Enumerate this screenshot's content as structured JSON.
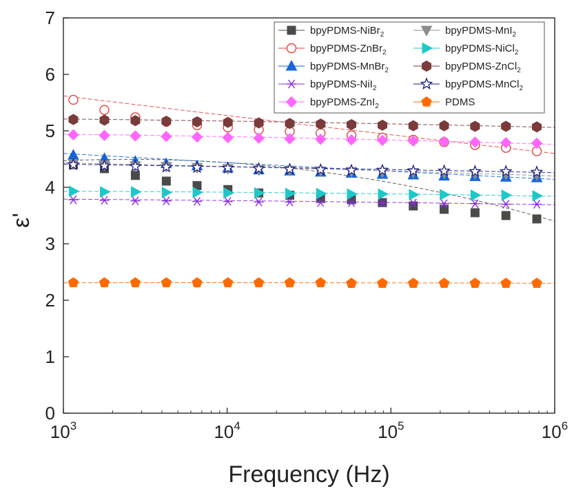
{
  "chart_data": {
    "type": "scatter",
    "title": "",
    "xlabel": "Frequency  (Hz)",
    "ylabel": "ε'",
    "xscale": "log",
    "xlim": [
      1000,
      1000000
    ],
    "ylim": [
      0,
      7
    ],
    "grid": false,
    "legend_position": "top-right",
    "x_ticks": [
      {
        "value": 1000,
        "base": "10",
        "exp": "3"
      },
      {
        "value": 10000,
        "base": "10",
        "exp": "4"
      },
      {
        "value": 100000,
        "base": "10",
        "exp": "5"
      },
      {
        "value": 1000000,
        "base": "10",
        "exp": "6"
      }
    ],
    "y_ticks": [
      0,
      1,
      2,
      3,
      4,
      5,
      6,
      7
    ],
    "x": [
      1150,
      1780,
      2750,
      4250,
      6550,
      10100,
      15600,
      24100,
      37200,
      57400,
      88700,
      136900,
      211300,
      326200,
      503700,
      777600
    ],
    "series": [
      {
        "name": "bpyPDMS-NiBr",
        "sub": "2",
        "marker": "square",
        "color": "#4a4a4a",
        "fill": "#4a4a4a",
        "values": [
          4.4,
          4.33,
          4.21,
          4.11,
          4.03,
          3.96,
          3.9,
          3.86,
          3.82,
          3.78,
          3.73,
          3.67,
          3.61,
          3.55,
          3.5,
          3.44
        ],
        "fit": [
          4.47,
          4.3,
          3.4
        ]
      },
      {
        "name": "bpyPDMS-ZnBr",
        "sub": "2",
        "marker": "circle-open",
        "color": "#e8403a",
        "fill": "none",
        "values": [
          5.55,
          5.37,
          5.24,
          5.16,
          5.1,
          5.06,
          5.02,
          4.99,
          4.96,
          4.92,
          4.88,
          4.84,
          4.8,
          4.75,
          4.7,
          4.64
        ],
        "fit": [
          5.62,
          5.1,
          4.6
        ]
      },
      {
        "name": "bpyPDMS-MnBr",
        "sub": "2",
        "marker": "triangle-up",
        "color": "#1565d8",
        "fill": "#1565d8",
        "values": [
          4.57,
          4.51,
          4.46,
          4.42,
          4.38,
          4.34,
          4.31,
          4.29,
          4.27,
          4.25,
          4.23,
          4.22,
          4.2,
          4.19,
          4.18,
          4.17
        ],
        "fit": [
          4.6,
          4.36,
          4.14
        ]
      },
      {
        "name": "bpyPDMS-NiI",
        "sub": "2",
        "marker": "asterisk",
        "color": "#8a2be2",
        "fill": "#8a2be2",
        "values": [
          3.78,
          3.77,
          3.76,
          3.76,
          3.75,
          3.75,
          3.74,
          3.74,
          3.73,
          3.73,
          3.72,
          3.72,
          3.71,
          3.71,
          3.7,
          3.7
        ],
        "fit": [
          3.79,
          3.75,
          3.69
        ]
      },
      {
        "name": "bpyPDMS-ZnI",
        "sub": "2",
        "marker": "diamond",
        "color": "#ff66ff",
        "fill": "#ff66ff",
        "values": [
          4.93,
          4.92,
          4.91,
          4.9,
          4.89,
          4.88,
          4.87,
          4.86,
          4.85,
          4.84,
          4.83,
          4.82,
          4.81,
          4.8,
          4.79,
          4.78
        ],
        "fit": [
          4.94,
          4.87,
          4.76
        ]
      },
      {
        "name": "bpyPDMS-MnI",
        "sub": "2",
        "marker": "triangle-down",
        "color": "#8c8c8c",
        "fill": "#8c8c8c",
        "values": [
          4.42,
          4.4,
          4.38,
          4.37,
          4.35,
          4.33,
          4.31,
          4.3,
          4.29,
          4.28,
          4.27,
          4.26,
          4.25,
          4.24,
          4.23,
          4.22
        ],
        "fit": [
          4.43,
          4.33,
          4.2
        ]
      },
      {
        "name": "bpyPDMS-NiCl",
        "sub": "2",
        "marker": "triangle-right",
        "color": "#1ec8c8",
        "fill": "#1ec8c8",
        "values": [
          3.93,
          3.92,
          3.92,
          3.91,
          3.91,
          3.9,
          3.9,
          3.89,
          3.89,
          3.88,
          3.88,
          3.87,
          3.87,
          3.86,
          3.86,
          3.85
        ],
        "fit": [
          3.93,
          3.9,
          3.84
        ]
      },
      {
        "name": "bpyPDMS-ZnCl",
        "sub": "2",
        "marker": "hexagon",
        "color": "#7a3b3b",
        "fill": "#7a3b3b",
        "values": [
          5.2,
          5.19,
          5.18,
          5.17,
          5.16,
          5.15,
          5.14,
          5.13,
          5.12,
          5.11,
          5.1,
          5.09,
          5.09,
          5.08,
          5.08,
          5.07
        ],
        "fit": [
          5.21,
          5.15,
          5.06
        ]
      },
      {
        "name": "bpyPDMS-MnCl",
        "sub": "2",
        "marker": "star-open",
        "color": "#1a1a80",
        "fill": "none",
        "values": [
          4.4,
          4.38,
          4.37,
          4.36,
          4.35,
          4.34,
          4.33,
          4.32,
          4.31,
          4.3,
          4.3,
          4.29,
          4.29,
          4.28,
          4.28,
          4.27
        ],
        "fit": [
          4.41,
          4.34,
          4.26
        ]
      },
      {
        "name": "PDMS",
        "sub": "",
        "marker": "pentagon",
        "color": "#ff6a00",
        "fill": "#ff6a00",
        "values": [
          2.31,
          2.31,
          2.31,
          2.31,
          2.31,
          2.31,
          2.31,
          2.31,
          2.31,
          2.3,
          2.3,
          2.3,
          2.3,
          2.3,
          2.3,
          2.3
        ],
        "fit": [
          2.31,
          2.31,
          2.3
        ]
      }
    ]
  }
}
